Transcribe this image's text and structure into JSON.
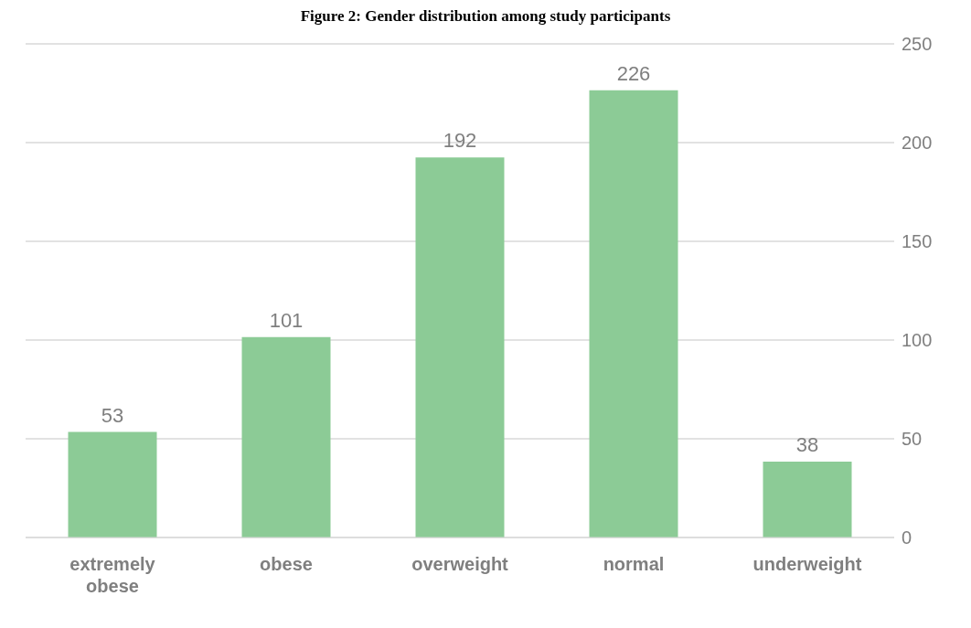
{
  "chart_data": {
    "type": "bar",
    "title": "Figure 2: Gender distribution among study participants",
    "categories": [
      "extremely obese",
      "obese",
      "overweight",
      "normal",
      "underweight"
    ],
    "values": [
      53,
      101,
      192,
      226,
      38
    ],
    "color": "#8ccb96",
    "ylim": [
      0,
      250
    ],
    "yticks": [
      0,
      50,
      100,
      150,
      200,
      250
    ],
    "grid": "y",
    "data_labels": true
  }
}
